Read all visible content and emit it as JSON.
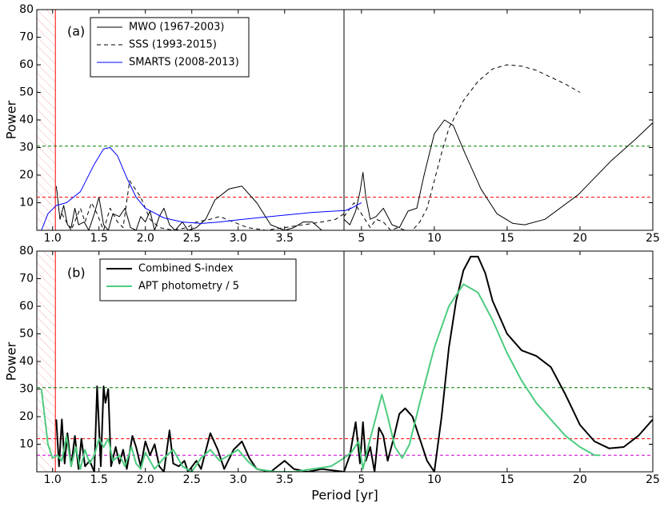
{
  "chart_data": [
    {
      "type": "line",
      "annotation": "(a)",
      "y_label": "Power",
      "legend": "upper left",
      "ylim": [
        0,
        80
      ],
      "yticks": [
        10,
        20,
        30,
        40,
        50,
        60,
        70,
        80
      ],
      "x_segments": [
        {
          "xlim": [
            0.83,
            4.14
          ],
          "xticks": [
            {
              "value": 1,
              "label": "1.0"
            },
            1.5,
            {
              "value": 2,
              "label": "2.0"
            },
            2.5,
            {
              "value": 3,
              "label": "3.0"
            },
            3.5
          ]
        },
        {
          "xlim": [
            3.8,
            25
          ],
          "xticks": [
            5,
            10,
            15,
            20,
            25
          ]
        }
      ],
      "excluded_range": [
        0.83,
        1.03
      ],
      "hlines": [
        {
          "value": 30.5,
          "color": "#008000"
        },
        {
          "value": 12,
          "color": "#ff0000"
        }
      ],
      "series": [
        {
          "name": "MWO (1967-2003)",
          "color": "#000000",
          "dashed": false,
          "width": 1,
          "segments": [
            {
              "x": [
                1.04,
                1.08,
                1.12,
                1.16,
                1.2,
                1.24,
                1.28,
                1.34,
                1.39,
                1.45,
                1.5,
                1.55,
                1.6,
                1.65,
                1.72,
                1.78,
                1.84,
                1.9,
                1.95,
                2.0,
                2.05,
                2.1,
                2.15,
                2.2,
                2.26,
                2.32,
                2.4,
                2.46,
                2.55,
                2.65,
                2.75,
                2.9,
                3.04,
                3.2,
                3.35,
                3.5,
                3.6,
                3.7,
                3.8,
                3.9,
                4.0,
                4.14
              ],
              "values": [
                16,
                4,
                9,
                2,
                1,
                8,
                2,
                3,
                0,
                6,
                12,
                2,
                0,
                6,
                5,
                8,
                1,
                0,
                5,
                3,
                7,
                0,
                5,
                8,
                2,
                0,
                3,
                0,
                1,
                4,
                11,
                15,
                16,
                10,
                2,
                0,
                1,
                3,
                3,
                0,
                0,
                0
              ]
            },
            {
              "x": [
                3.8,
                4.2,
                4.6,
                4.9,
                5.1,
                5.3,
                5.6,
                6.0,
                6.5,
                7.1,
                7.6,
                8.2,
                8.8,
                9.3,
                10,
                10.7,
                11.3,
                12.1,
                13.2,
                14.3,
                15.4,
                16.2,
                17.6,
                19.9,
                22.1,
                23.8,
                25
              ],
              "values": [
                4,
                2,
                7,
                14,
                21,
                12,
                4,
                5,
                8,
                2,
                1,
                7,
                8,
                20,
                35,
                40,
                38,
                28,
                15,
                6,
                2.5,
                2,
                4,
                13,
                25,
                33,
                39
              ]
            }
          ]
        },
        {
          "name": "SSS (1993-2015)",
          "color": "#000000",
          "dashed": true,
          "width": 1,
          "segments": [
            {
              "x": [
                1.1,
                1.2,
                1.3,
                1.35,
                1.42,
                1.48,
                1.55,
                1.62,
                1.7,
                1.76,
                1.83,
                1.95,
                2.05,
                2.15,
                2.3,
                2.45,
                2.55,
                2.7,
                2.8,
                2.95,
                3.1,
                3.3,
                3.5,
                3.7,
                3.9,
                4.05,
                4.14
              ],
              "values": [
                6,
                0,
                8,
                3,
                10,
                6,
                0,
                8,
                3,
                1,
                18,
                12,
                4,
                1,
                0,
                1,
                3,
                4,
                5,
                3,
                1,
                0,
                1,
                2,
                3,
                4,
                6
              ]
            },
            {
              "x": [
                3.8,
                4.5,
                5.0,
                5.6,
                6.0,
                6.5,
                7.0,
                7.5,
                8.0,
                8.5,
                9.0,
                9.5,
                10,
                10.5,
                11,
                12,
                13,
                14,
                15,
                16,
                17,
                18,
                19,
                20
              ],
              "values": [
                5,
                10,
                6,
                1,
                4,
                3,
                0,
                1,
                0,
                0,
                3,
                8,
                18,
                28,
                37,
                47,
                54,
                58.5,
                60,
                59.5,
                58,
                55.5,
                53,
                50
              ]
            }
          ]
        },
        {
          "name": "SMARTS (2008-2013)",
          "color": "#0000ff",
          "dashed": false,
          "width": 1,
          "segments": [
            {
              "x": [
                0.88,
                0.95,
                1.04,
                1.15,
                1.3,
                1.45,
                1.55,
                1.62,
                1.7,
                1.8,
                1.9,
                2.0,
                2.2,
                2.4,
                2.6,
                2.8,
                3.0,
                3.2,
                3.5,
                3.8,
                4.14
              ],
              "values": [
                0,
                6,
                9,
                10,
                14,
                24,
                29.5,
                30,
                27,
                19,
                12,
                8,
                4.5,
                3,
                2.5,
                3,
                3.8,
                4.5,
                5.5,
                6.5,
                7.2
              ]
            },
            {
              "x": [
                3.8,
                4.3,
                5.0
              ],
              "values": [
                7,
                8,
                10
              ]
            }
          ]
        }
      ]
    },
    {
      "type": "line",
      "annotation": "(b)",
      "y_label": "Power",
      "x_label": "Period [yr]",
      "legend": "upper left",
      "ylim": [
        0,
        80
      ],
      "yticks": [
        10,
        20,
        30,
        40,
        50,
        60,
        70,
        80
      ],
      "x_segments": [
        {
          "xlim": [
            0.83,
            4.14
          ],
          "xticks": [
            {
              "value": 1,
              "label": "1.0"
            },
            1.5,
            {
              "value": 2,
              "label": "2.0"
            },
            2.5,
            {
              "value": 3,
              "label": "3.0"
            },
            3.5
          ]
        },
        {
          "xlim": [
            3.8,
            25
          ],
          "xticks": [
            5,
            10,
            15,
            20,
            25
          ]
        }
      ],
      "excluded_range": [
        0.83,
        1.03
      ],
      "hlines": [
        {
          "value": 30.5,
          "color": "#008000"
        },
        {
          "value": 12,
          "color": "#ff0000"
        },
        {
          "value": 6,
          "color": "#cc00cc"
        }
      ],
      "series": [
        {
          "name": "Combined S-index",
          "color": "#000000",
          "dashed": false,
          "width": 2,
          "segments": [
            {
              "x": [
                1.04,
                1.07,
                1.1,
                1.13,
                1.16,
                1.2,
                1.24,
                1.28,
                1.31,
                1.35,
                1.4,
                1.45,
                1.48,
                1.52,
                1.55,
                1.57,
                1.6,
                1.63,
                1.68,
                1.72,
                1.76,
                1.8,
                1.86,
                1.9,
                1.95,
                2.0,
                2.05,
                2.1,
                2.15,
                2.2,
                2.26,
                2.3,
                2.36,
                2.42,
                2.46,
                2.55,
                2.6,
                2.7,
                2.78,
                2.85,
                2.95,
                3.04,
                3.12,
                3.2,
                3.35,
                3.5,
                3.6,
                3.75,
                3.9,
                4.14
              ],
              "values": [
                19,
                2,
                19,
                3,
                14,
                2,
                13,
                1,
                12,
                2,
                4,
                0,
                31,
                2,
                31,
                25,
                30,
                2,
                9,
                3,
                8,
                1,
                13,
                9,
                2,
                11,
                6,
                10,
                2,
                0,
                15,
                3,
                2,
                4,
                0,
                4,
                1,
                14,
                8,
                1,
                8,
                11,
                5,
                1,
                0,
                4,
                1,
                0,
                1,
                0
              ]
            },
            {
              "x": [
                3.8,
                4.2,
                4.6,
                4.9,
                5.1,
                5.3,
                5.6,
                5.9,
                6.2,
                6.5,
                6.8,
                7.2,
                7.6,
                8,
                8.5,
                9,
                9.5,
                10,
                10.5,
                11,
                11.5,
                12,
                12.5,
                13,
                13.5,
                14,
                15,
                16,
                17,
                18,
                19,
                20,
                21,
                22,
                23,
                24,
                25
              ],
              "values": [
                0,
                6,
                18,
                3,
                18,
                4,
                9,
                0,
                16,
                13,
                4,
                12,
                21,
                23,
                20,
                12,
                4,
                0,
                20,
                45,
                62,
                73,
                78,
                78,
                72,
                62,
                50,
                44,
                42,
                38,
                28,
                17,
                11,
                8.5,
                9,
                13,
                19
              ]
            }
          ]
        },
        {
          "name": "APT photometry / 5",
          "color": "#4dcc80",
          "dashed": false,
          "width": 2,
          "segments": [
            {
              "x": [
                0.88,
                0.95,
                1.0,
                1.05,
                1.1,
                1.15,
                1.2,
                1.25,
                1.3,
                1.35,
                1.4,
                1.45,
                1.5,
                1.55,
                1.6,
                1.65,
                1.72,
                1.78,
                1.85,
                1.9,
                1.95,
                2.0,
                2.05,
                2.1,
                2.2,
                2.3,
                2.4,
                2.5,
                2.6,
                2.7,
                2.8,
                2.9,
                3.0,
                3.1,
                3.2,
                3.4,
                3.6,
                3.8,
                4.0,
                4.14
              ],
              "values": [
                30,
                10,
                5,
                6,
                4,
                13,
                2,
                9,
                1,
                8,
                3,
                6,
                12,
                9,
                12,
                4,
                6,
                2,
                9,
                3,
                1,
                7,
                4,
                1,
                5,
                8,
                2,
                0,
                5,
                8,
                4,
                6,
                8,
                4,
                1,
                0,
                0,
                1,
                2,
                5
              ]
            },
            {
              "x": [
                3.8,
                4.3,
                4.8,
                5.1,
                5.5,
                6.0,
                6.4,
                6.8,
                7.3,
                7.8,
                8.3,
                9,
                10,
                11,
                12,
                13,
                14,
                15,
                16,
                17,
                18,
                19,
                20,
                21,
                21.4
              ],
              "values": [
                5,
                7,
                11,
                1,
                10,
                20,
                28,
                20,
                9,
                5,
                10,
                25,
                45,
                60,
                68,
                65,
                55,
                43,
                33,
                25,
                19,
                13,
                9,
                6,
                6
              ]
            }
          ]
        }
      ]
    }
  ]
}
